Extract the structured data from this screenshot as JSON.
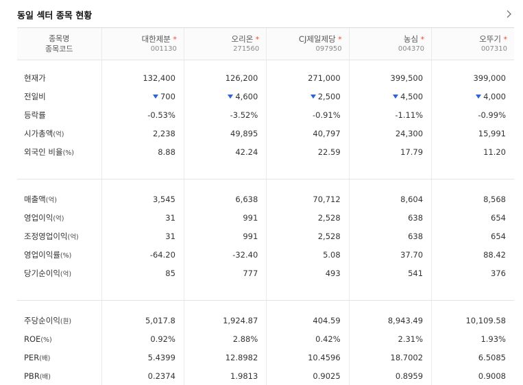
{
  "header": {
    "title": "동일 섹터 종목 현황"
  },
  "columns_header": {
    "name_label": "종목명",
    "code_label": "종목코드"
  },
  "companies": [
    {
      "name": "대한제분",
      "code": "001130",
      "star": "*"
    },
    {
      "name": "오리온",
      "code": "271560",
      "star": "*"
    },
    {
      "name": "CJ제일제당",
      "code": "097950",
      "star": "*"
    },
    {
      "name": "농심",
      "code": "004370",
      "star": "*"
    },
    {
      "name": "오뚜기",
      "code": "007310",
      "star": "*"
    }
  ],
  "sections": [
    {
      "rows": [
        {
          "label": "현재가",
          "unit": "",
          "values": [
            "132,400",
            "126,200",
            "271,000",
            "399,500",
            "399,000"
          ]
        },
        {
          "label": "전일비",
          "unit": "",
          "values": [
            "700",
            "4,600",
            "2,500",
            "4,500",
            "4,000"
          ],
          "direction": "down"
        },
        {
          "label": "등락률",
          "unit": "",
          "values": [
            "-0.53%",
            "-3.52%",
            "-0.91%",
            "-1.11%",
            "-0.99%"
          ],
          "direction": "down"
        },
        {
          "label": "시가총액",
          "unit": "(억)",
          "values": [
            "2,238",
            "49,895",
            "40,797",
            "24,300",
            "15,991"
          ]
        },
        {
          "label": "외국인 비율",
          "unit": "(%)",
          "values": [
            "8.88",
            "42.24",
            "22.59",
            "17.79",
            "11.20"
          ]
        }
      ]
    },
    {
      "rows": [
        {
          "label": "매출액",
          "unit": "(억)",
          "values": [
            "3,545",
            "6,638",
            "70,712",
            "8,604",
            "8,568"
          ]
        },
        {
          "label": "영업이익",
          "unit": "(억)",
          "values": [
            "31",
            "991",
            "2,528",
            "638",
            "654"
          ]
        },
        {
          "label": "조정영업이익",
          "unit": "(억)",
          "values": [
            "31",
            "991",
            "2,528",
            "638",
            "654"
          ]
        },
        {
          "label": "영업이익률",
          "unit": "(%)",
          "values": [
            "-64.20",
            "-32.40",
            "5.08",
            "37.70",
            "88.42"
          ]
        },
        {
          "label": "당기순이익",
          "unit": "(억)",
          "values": [
            "85",
            "777",
            "493",
            "541",
            "376"
          ]
        }
      ]
    },
    {
      "rows": [
        {
          "label": "주당순이익",
          "unit": "(원)",
          "values": [
            "5,017.8",
            "1,924.87",
            "404.59",
            "8,943.49",
            "10,109.58"
          ]
        },
        {
          "label": "ROE",
          "unit": "(%)",
          "values": [
            "0.92%",
            "2.88%",
            "0.42%",
            "2.31%",
            "1.93%"
          ]
        },
        {
          "label": "PER",
          "unit": "(배)",
          "values": [
            "5.4399",
            "12.8982",
            "10.4596",
            "18.7002",
            "6.5085"
          ]
        },
        {
          "label": "PBR",
          "unit": "(배)",
          "values": [
            "0.2374",
            "1.9813",
            "0.9025",
            "0.8959",
            "0.9008"
          ]
        }
      ]
    }
  ],
  "colors": {
    "down": "#2f62d4",
    "star": "#f0462b"
  },
  "icons": {
    "more": "chevron-right-icon",
    "down": "triangle-down-icon"
  }
}
